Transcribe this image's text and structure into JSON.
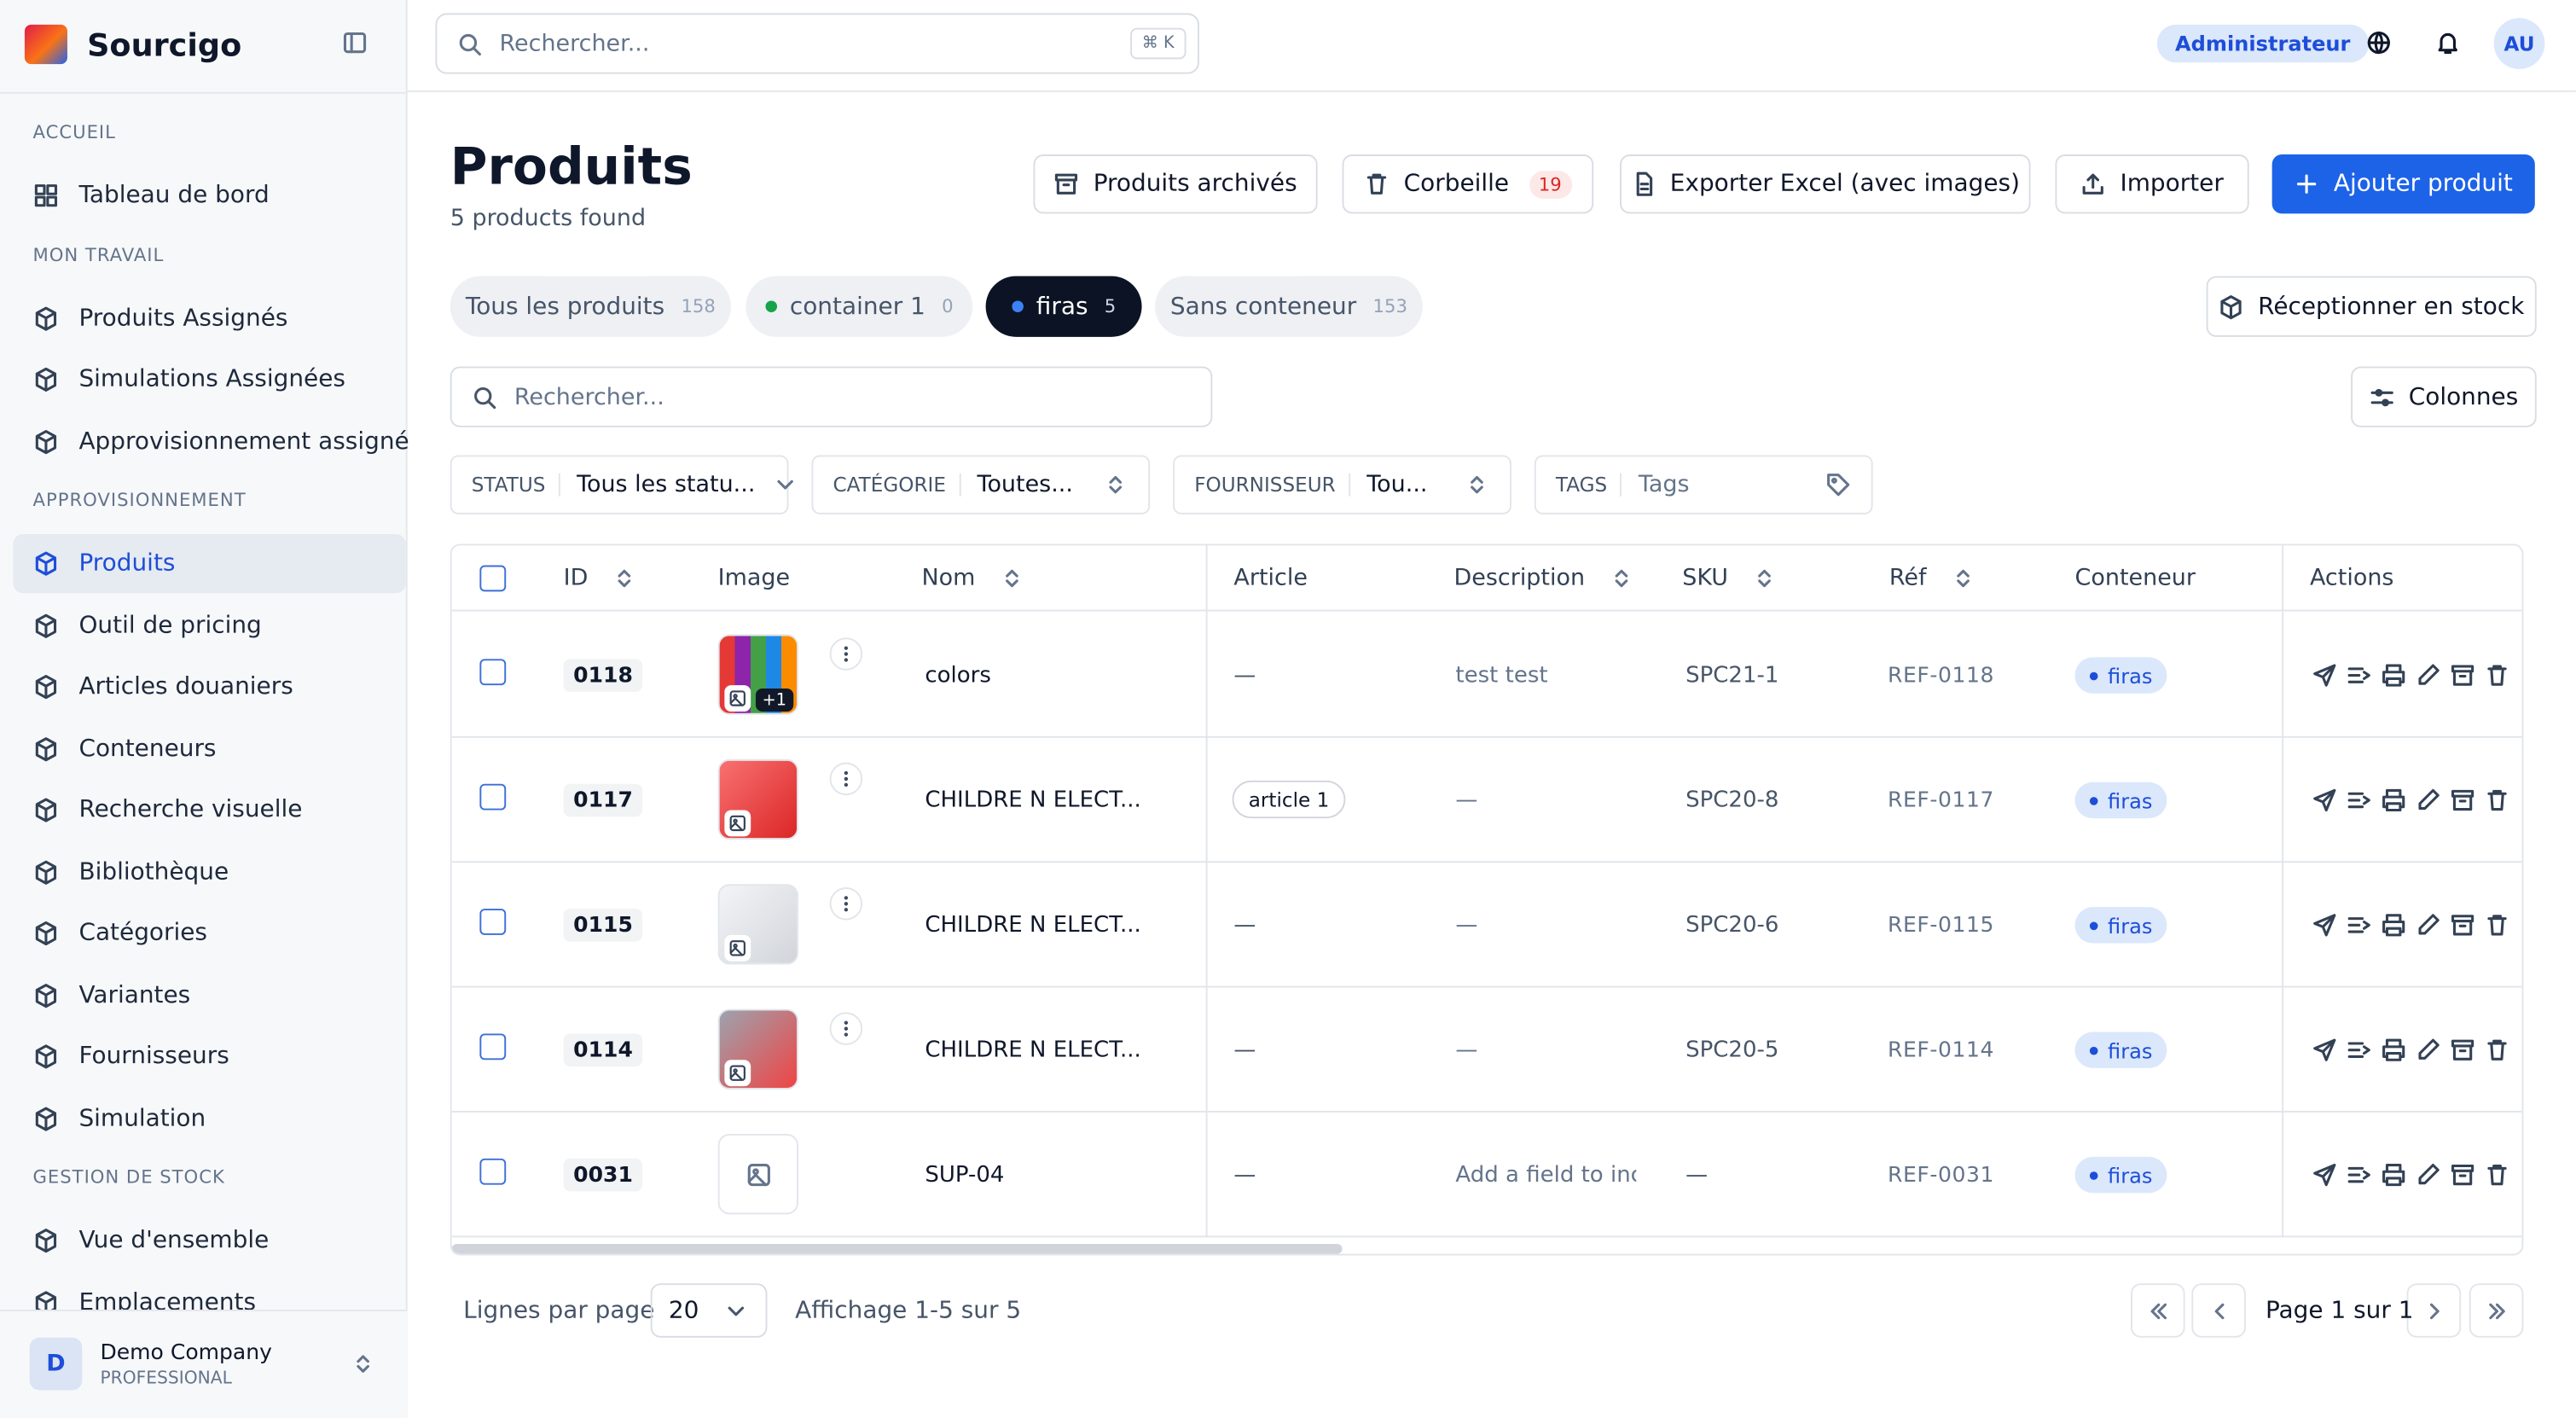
{
  "sidebar": {
    "brand": "Sourcigo",
    "active": [
      2,
      0
    ],
    "sections": [
      {
        "title": "ACCUEIL",
        "items": [
          "Tableau de bord"
        ]
      },
      {
        "title": "MON TRAVAIL",
        "items": [
          "Produits Assignés",
          "Simulations Assignées",
          "Approvisionnement assigné"
        ]
      },
      {
        "title": "APPROVISIONNEMENT",
        "items": [
          "Produits",
          "Outil de pricing",
          "Articles douaniers",
          "Conteneurs",
          "Recherche visuelle",
          "Bibliothèque",
          "Catégories",
          "Variantes",
          "Fournisseurs",
          "Simulation"
        ]
      },
      {
        "title": "GESTION DE STOCK",
        "items": [
          "Vue d'ensemble",
          "Emplacements"
        ]
      }
    ],
    "company": {
      "initial": "D",
      "name": "Demo Company",
      "plan": "PROFESSIONAL"
    }
  },
  "topbar": {
    "search": "Rechercher...",
    "shortcut": "⌘ K",
    "role": "Administrateur",
    "avatar": "AU"
  },
  "header": {
    "title": "Produits",
    "subtitle": "5 products found",
    "trash_count": "19",
    "buttons": [
      "Produits archivés",
      "Corbeille",
      "Exporter Excel (avec images)",
      "Importer",
      "Ajouter produit"
    ]
  },
  "tabs": [
    {
      "label": "Tous les produits",
      "count": "158"
    },
    {
      "label": "container 1",
      "count": "0"
    },
    {
      "label": "firas",
      "count": "5"
    },
    {
      "label": "Sans conteneur",
      "count": "153"
    }
  ],
  "receive": "Réceptionner en stock",
  "search": "Rechercher...",
  "columns_button": "Colonnes",
  "filters": [
    {
      "label": "STATUS",
      "value": "Tous les statu..."
    },
    {
      "label": "CATÉGORIE",
      "value": "Toutes..."
    },
    {
      "label": "FOURNISSEUR",
      "value": "Tou..."
    },
    {
      "label": "TAGS",
      "value": "Tags"
    }
  ],
  "table": {
    "headers": [
      "ID",
      "Image",
      "Nom",
      "Article",
      "Description",
      "SKU",
      "Réf",
      "Conteneur",
      "Actions"
    ],
    "image_badge": "+1",
    "rows": [
      [
        "0118",
        "colors",
        "—",
        "test test",
        "SPC21-1",
        "REF-0118",
        "firas"
      ],
      [
        "0117",
        "CHILDRE N ELECT...",
        "article 1",
        "—",
        "SPC20-8",
        "REF-0117",
        "firas"
      ],
      [
        "0115",
        "CHILDRE N ELECT...",
        "—",
        "—",
        "SPC20-6",
        "REF-0115",
        "firas"
      ],
      [
        "0114",
        "CHILDRE N ELECT...",
        "—",
        "—",
        "SPC20-5",
        "REF-0114",
        "firas"
      ],
      [
        "0031",
        "SUP-04",
        "—",
        "Add a field to inc",
        "—",
        "REF-0031",
        "firas"
      ]
    ]
  },
  "pagination": {
    "rows_label": "Lignes par page",
    "rows_value": "20",
    "range": "Affichage 1-5 sur 5",
    "page": "Page 1 sur 1"
  }
}
